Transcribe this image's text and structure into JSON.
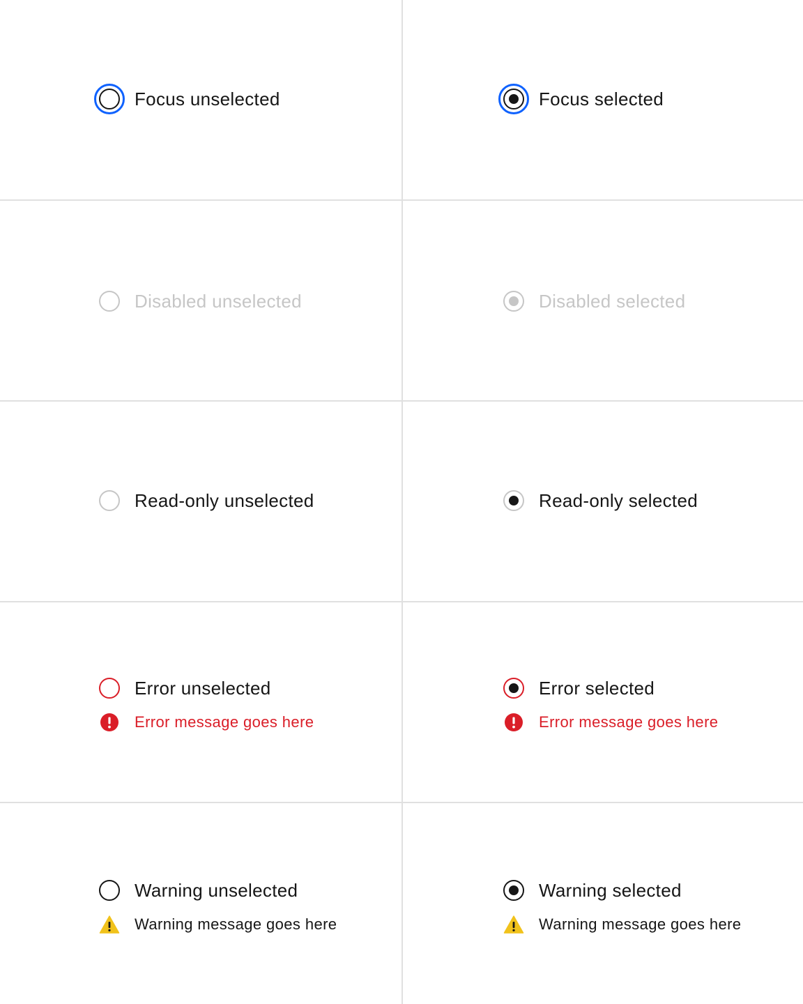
{
  "colors": {
    "focus": "#0f62fe",
    "text": "#161616",
    "disabled": "#c6c6c6",
    "error": "#da1e28",
    "warning": "#f1c21b",
    "divider": "#e0e0e0"
  },
  "cells": {
    "focus_unselected": {
      "label": "Focus unselected",
      "checked": false
    },
    "focus_selected": {
      "label": "Focus selected",
      "checked": true
    },
    "disabled_unselected": {
      "label": "Disabled unselected",
      "checked": false
    },
    "disabled_selected": {
      "label": "Disabled selected",
      "checked": true
    },
    "readonly_unselected": {
      "label": "Read-only unselected",
      "checked": false
    },
    "readonly_selected": {
      "label": "Read-only selected",
      "checked": true
    },
    "error_unselected": {
      "label": "Error unselected",
      "checked": false,
      "message": "Error message goes here",
      "icon": "error-filled-icon"
    },
    "error_selected": {
      "label": "Error selected",
      "checked": true,
      "message": "Error message goes here",
      "icon": "error-filled-icon"
    },
    "warning_unselected": {
      "label": "Warning unselected",
      "checked": false,
      "message": "Warning message goes here",
      "icon": "warning-alt-filled-icon"
    },
    "warning_selected": {
      "label": "Warning selected",
      "checked": true,
      "message": "Warning message goes here",
      "icon": "warning-alt-filled-icon"
    }
  }
}
